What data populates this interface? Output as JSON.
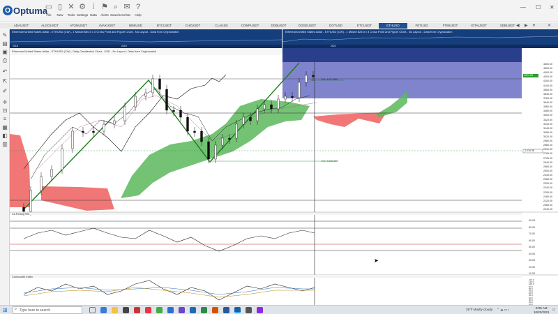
{
  "app": {
    "logo_text": "Optuma",
    "toolbar": [
      {
        "label": "File",
        "icon": "folder-icon"
      },
      {
        "label": "New",
        "icon": "new-document-icon"
      },
      {
        "label": "Tools",
        "icon": "tools-icon"
      },
      {
        "label": "Settings",
        "icon": "gear-icon"
      },
      {
        "label": "Data",
        "icon": "data-grid-icon"
      },
      {
        "label": "Alerts",
        "icon": "alert-icon"
      },
      {
        "label": "Searches",
        "icon": "search-icon"
      },
      {
        "label": "Chat",
        "icon": "chat-icon"
      },
      {
        "label": "Help",
        "icon": "help-icon"
      }
    ]
  },
  "tabs": [
    "ADAUSDT",
    "ALGOUSDT",
    "ATOMUSDT",
    "AVAXUSDT",
    "BNBUSD",
    "BTCUSDT",
    "CHZUSDT",
    "CLAUSD",
    "COMPUSDT",
    "DGBUSDT",
    "DOGEUSDT",
    "DOTUSD",
    "ETCUSDT",
    "ETHUSD",
    "FETUSD",
    "FTMUSDT",
    "IOTAUSDT",
    "XDBUSDT"
  ],
  "active_tab": "ETHUSD",
  "charts": {
    "top_left_header": "Ethereum/United States dollar - ETHUSD (CW) - 1 Minute $50.0 x 3 Cross Point and Figure Chart - No Layout - Data from Cryptowatch",
    "top_right_header": "Ethereum/United States dollar - ETHUSD (CW) - 1 Minute $25.0 x 3 Cross Point and Figure Chart - No Layout - Data from Cryptowatch",
    "main_header": "Ethereum/United States dollar - ETHUSD (CW) - Daily Candlestick Chart - USD - No Layout - Data from Cryptowatch",
    "top_left_years": [
      "2018",
      "2019"
    ],
    "top_right_year": "2021",
    "annotation_upper": "Ext: 4,637.880",
    "annotation_lower": "Ext: 2,608.969",
    "rsi_title": "14-Period RSI",
    "composite_title": "Composite Index"
  },
  "price_axis": [
    "4600.00",
    "4500.00",
    "4400.00",
    "4300.00",
    "4200.00",
    "4100.00",
    "3960.00",
    "3840.00",
    "3760.00",
    "3640.00",
    "3560.00",
    "3480.00",
    "3400.00",
    "3320.00",
    "3240.00",
    "3140.00",
    "3080.00",
    "3020.00",
    "2960.00",
    "2880.00",
    "2810.00",
    "2760.00",
    "2700.00",
    "2640.00",
    "2560.00",
    "2500.00",
    "2440.00",
    "2360.00",
    "2300.00",
    "2240.00",
    "2200.00",
    "2160.00",
    "2120.00",
    "2080.00",
    "2040.00"
  ],
  "price_highlight": "4221.00",
  "price_current": "3,016.38",
  "rsi_axis": [
    "90.00",
    "80.00",
    "70.00",
    "60.00",
    "50.00",
    "40.00",
    "30.00",
    "20.00",
    "10.00"
  ],
  "composite_axis": [
    "120.0",
    "110.0",
    "100.0",
    "90.0",
    "80.0",
    "70.0",
    "60.0",
    "50.0",
    "40.0",
    "30.0",
    "20.0",
    "10.0"
  ],
  "taskbar": {
    "search_placeholder": "Type here to search",
    "weather": "29°F  Mostly cloudy",
    "time": "8:05 AM",
    "date": "10/22/2021"
  },
  "colors": {
    "accent": "#1f4f95",
    "bull_cloud": "#5cb85c",
    "bear_cloud": "#ee5f5f",
    "highlight_box": "#6a6fc4",
    "zigzag": "#1e7a1e"
  }
}
